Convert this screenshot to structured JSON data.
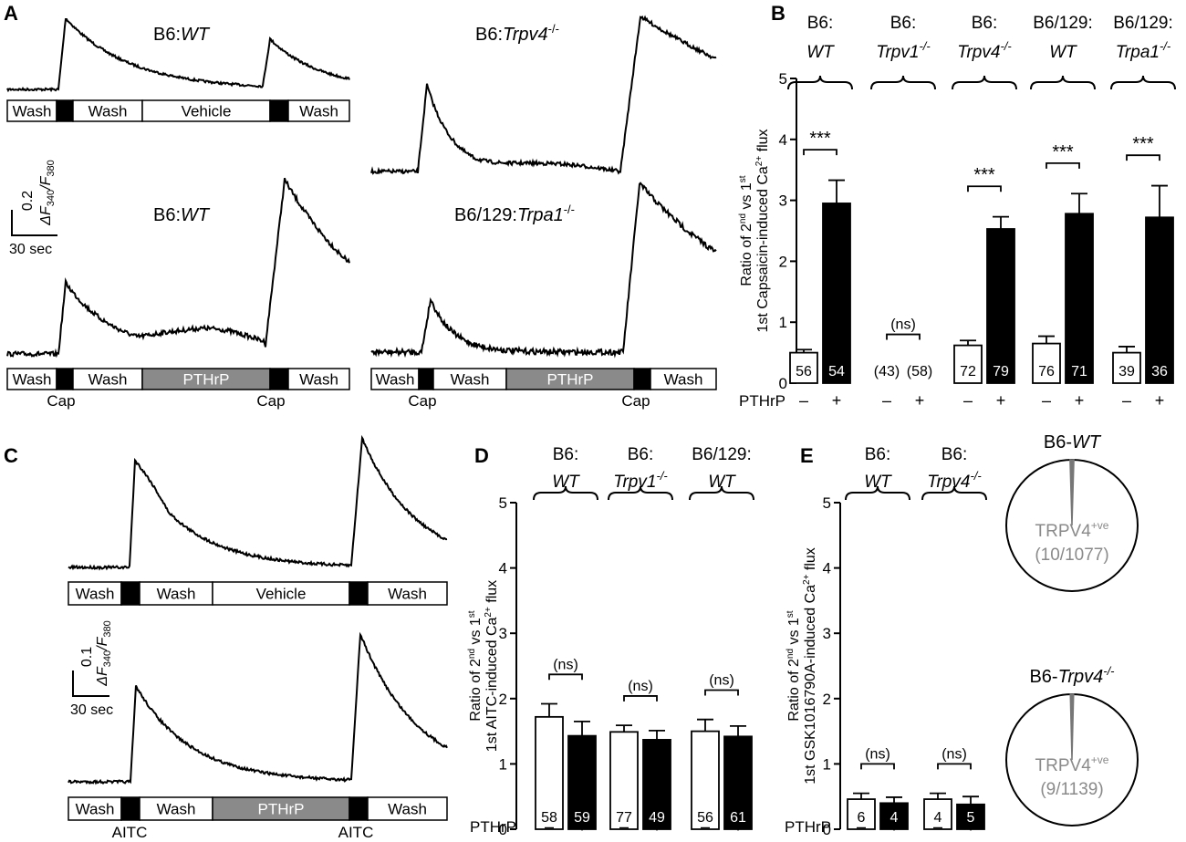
{
  "panel_labels": {
    "a": "A",
    "b": "B",
    "c": "C",
    "d": "D",
    "e": "E"
  },
  "traces": {
    "title_wt": "B6:",
    "title_wt_italic": "WT",
    "title_trpv4": "B6:",
    "title_trpv4_italic": "Trpv4",
    "title_trpv4_sup": "-/-",
    "title_trpa1": "B6/129:",
    "title_trpa1_italic": "Trpa1",
    "title_trpa1_sup": "-/-",
    "protocol": {
      "wash": "Wash",
      "vehicle": "Vehicle",
      "pthrp": "PTHrP",
      "cap": "Cap",
      "aitc": "AITC"
    },
    "scale_a": {
      "y": "0.2",
      "x": "30 sec"
    },
    "scale_c": {
      "y": "0.1",
      "x": "30 sec"
    },
    "scale_label_main": "ΔF",
    "scale_label_sub1": "340",
    "scale_label_sep": "/F",
    "scale_label_sub2": "380"
  },
  "pthrp_axis": {
    "label": "PTHrP",
    "minus": "–",
    "plus": "+"
  },
  "sig": {
    "star": "***",
    "ns": "(ns)"
  },
  "chart_data": [
    {
      "panel": "B",
      "type": "bar",
      "ylabel": "Ratio of 2nd vs 1st Capsaicin-induced Ca2+ flux",
      "ylim": [
        0,
        5
      ],
      "yticks": [
        "0",
        "1",
        "2",
        "3",
        "4",
        "5"
      ],
      "groups": [
        {
          "title": "B6:",
          "genotype": "WT",
          "sup": "",
          "values": [
            0.5,
            2.95
          ],
          "errors": [
            0.05,
            0.38
          ],
          "n": [
            "56",
            "54"
          ],
          "significance": "***"
        },
        {
          "title": "B6:",
          "genotype": "Trpv1",
          "sup": "-/-",
          "values": [
            0,
            0
          ],
          "errors": [
            0,
            0
          ],
          "n": [
            "(43)",
            "(58)"
          ],
          "significance": "(ns)"
        },
        {
          "title": "B6:",
          "genotype": "Trpv4",
          "sup": "-/-",
          "values": [
            0.62,
            2.53
          ],
          "errors": [
            0.08,
            0.2
          ],
          "n": [
            "72",
            "79"
          ],
          "significance": "***"
        },
        {
          "title": "B6/129:",
          "genotype": "WT",
          "sup": "",
          "values": [
            0.65,
            2.78
          ],
          "errors": [
            0.12,
            0.33
          ],
          "n": [
            "76",
            "71"
          ],
          "significance": "***"
        },
        {
          "title": "B6/129:",
          "genotype": "Trpa1",
          "sup": "-/-",
          "values": [
            0.5,
            2.72
          ],
          "errors": [
            0.1,
            0.52
          ],
          "n": [
            "39",
            "36"
          ],
          "significance": "***"
        }
      ],
      "series": [
        {
          "name": "PTHrP –",
          "color": "#ffffff"
        },
        {
          "name": "PTHrP +",
          "color": "#000000"
        }
      ]
    },
    {
      "panel": "D",
      "type": "bar",
      "ylabel": "Ratio of 2nd vs 1st AITC-induced Ca2+ flux",
      "ylim": [
        0,
        5
      ],
      "yticks": [
        "0",
        "1",
        "2",
        "3",
        "4",
        "5"
      ],
      "groups": [
        {
          "title": "B6:",
          "genotype": "WT",
          "sup": "",
          "values": [
            1.72,
            1.43
          ],
          "errors": [
            0.2,
            0.22
          ],
          "n": [
            "58",
            "59"
          ],
          "significance": "(ns)"
        },
        {
          "title": "B6:",
          "genotype": "Trpv1",
          "sup": "-/-",
          "values": [
            1.49,
            1.37
          ],
          "errors": [
            0.1,
            0.14
          ],
          "n": [
            "77",
            "49"
          ],
          "significance": "(ns)"
        },
        {
          "title": "B6/129:",
          "genotype": "WT",
          "sup": "",
          "values": [
            1.5,
            1.42
          ],
          "errors": [
            0.18,
            0.16
          ],
          "n": [
            "56",
            "61"
          ],
          "significance": "(ns)"
        }
      ],
      "series": [
        {
          "name": "PTHrP –",
          "color": "#ffffff"
        },
        {
          "name": "PTHrP +",
          "color": "#000000"
        }
      ]
    },
    {
      "panel": "E",
      "type": "bar",
      "ylabel": "Ratio of 2nd vs 1st GSK1016790A-induced Ca2+ flux",
      "ylim": [
        0,
        5
      ],
      "yticks": [
        "0",
        "1",
        "2",
        "3",
        "4",
        "5"
      ],
      "groups": [
        {
          "title": "B6:",
          "genotype": "WT",
          "sup": "",
          "values": [
            0.46,
            0.4
          ],
          "errors": [
            0.09,
            0.09
          ],
          "n": [
            "6",
            "4"
          ],
          "significance": "(ns)"
        },
        {
          "title": "B6:",
          "genotype": "Trpv4",
          "sup": "-/-",
          "values": [
            0.46,
            0.38
          ],
          "errors": [
            0.09,
            0.12
          ],
          "n": [
            "4",
            "5"
          ],
          "significance": "(ns)"
        }
      ],
      "series": [
        {
          "name": "PTHrP –",
          "color": "#ffffff"
        },
        {
          "name": "PTHrP +",
          "color": "#000000"
        }
      ]
    },
    {
      "panel": "E-pie",
      "type": "pie",
      "pies": [
        {
          "title": "B6-",
          "genotype": "WT",
          "sup": "",
          "label": "TRPV4",
          "label_sup": "+ve",
          "count": "(10/1077)",
          "positive": 10,
          "total": 1077
        },
        {
          "title": "B6-",
          "genotype": "Trpv4",
          "sup": "-/-",
          "label": "TRPV4",
          "label_sup": "+ve",
          "count": "(9/1139)",
          "positive": 9,
          "total": 1139
        }
      ]
    }
  ]
}
